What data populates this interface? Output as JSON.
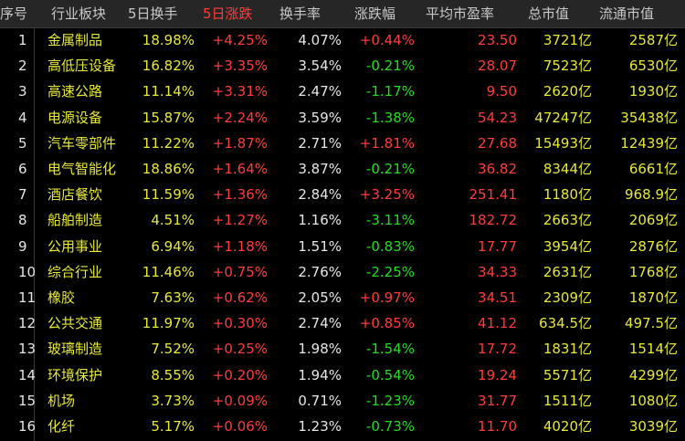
{
  "table": {
    "columns": [
      "序号",
      "行业板块",
      "5日换手",
      "5日涨跌",
      "换手率",
      "涨跌幅",
      "平均市盈率",
      "总市值",
      "流通市值"
    ],
    "rows": [
      [
        "1",
        "金属制品",
        "18.98%",
        "+4.25%",
        "4.07%",
        "+0.44%",
        "23.50",
        "3721亿",
        "2587亿"
      ],
      [
        "2",
        "高低压设备",
        "16.82%",
        "+3.35%",
        "3.54%",
        "-0.21%",
        "28.07",
        "7523亿",
        "6530亿"
      ],
      [
        "3",
        "高速公路",
        "11.14%",
        "+3.31%",
        "2.47%",
        "-1.17%",
        "9.50",
        "2620亿",
        "1930亿"
      ],
      [
        "4",
        "电源设备",
        "15.87%",
        "+2.24%",
        "3.59%",
        "-1.38%",
        "54.23",
        "47247亿",
        "35438亿"
      ],
      [
        "5",
        "汽车零部件",
        "11.22%",
        "+1.87%",
        "2.71%",
        "+1.81%",
        "27.68",
        "15493亿",
        "12439亿"
      ],
      [
        "6",
        "电气智能化",
        "18.86%",
        "+1.64%",
        "3.87%",
        "-0.21%",
        "36.82",
        "8344亿",
        "6661亿"
      ],
      [
        "7",
        "酒店餐饮",
        "11.59%",
        "+1.36%",
        "2.84%",
        "+3.25%",
        "251.41",
        "1180亿",
        "968.9亿"
      ],
      [
        "8",
        "船舶制造",
        "4.51%",
        "+1.27%",
        "1.16%",
        "-3.11%",
        "182.72",
        "2663亿",
        "2069亿"
      ],
      [
        "9",
        "公用事业",
        "6.94%",
        "+1.18%",
        "1.51%",
        "-0.83%",
        "17.77",
        "3954亿",
        "2876亿"
      ],
      [
        "10",
        "综合行业",
        "11.46%",
        "+0.75%",
        "2.76%",
        "-2.25%",
        "34.33",
        "2631亿",
        "1768亿"
      ],
      [
        "11",
        "橡胶",
        "7.63%",
        "+0.62%",
        "2.05%",
        "+0.97%",
        "34.51",
        "2309亿",
        "1870亿"
      ],
      [
        "12",
        "公共交通",
        "11.97%",
        "+0.30%",
        "2.74%",
        "+0.85%",
        "41.12",
        "634.5亿",
        "497.5亿"
      ],
      [
        "13",
        "玻璃制造",
        "7.52%",
        "+0.25%",
        "1.98%",
        "-1.54%",
        "17.72",
        "1831亿",
        "1514亿"
      ],
      [
        "14",
        "环境保护",
        "8.55%",
        "+0.20%",
        "1.94%",
        "-0.54%",
        "19.24",
        "5571亿",
        "4299亿"
      ],
      [
        "15",
        "机场",
        "3.73%",
        "+0.09%",
        "0.71%",
        "-1.23%",
        "31.77",
        "1511亿",
        "1080亿"
      ],
      [
        "16",
        "化纤",
        "5.17%",
        "+0.06%",
        "1.23%",
        "-0.73%",
        "11.70",
        "4020亿",
        "3039亿"
      ]
    ]
  }
}
